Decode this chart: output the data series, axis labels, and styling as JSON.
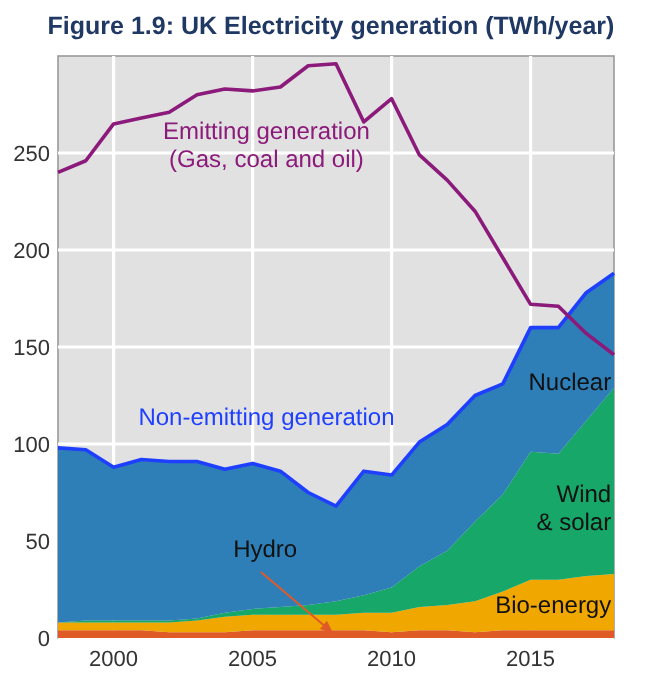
{
  "chart_data": {
    "type": "area",
    "title": "Figure 1.9: UK Electricity generation (TWh/year)",
    "stacked": true,
    "x": [
      1998,
      1999,
      2000,
      2001,
      2002,
      2003,
      2004,
      2005,
      2006,
      2007,
      2008,
      2009,
      2010,
      2011,
      2012,
      2013,
      2014,
      2015,
      2016,
      2017,
      2018
    ],
    "series": [
      {
        "name": "Hydro",
        "color": "#e05a28",
        "values": [
          4,
          4,
          4,
          4,
          3,
          3,
          3,
          4,
          4,
          4,
          4,
          4,
          3,
          4,
          4,
          3,
          4,
          4,
          4,
          4,
          4
        ]
      },
      {
        "name": "Bio-energy",
        "color": "#f0a800",
        "values": [
          4,
          4,
          4,
          4,
          5,
          6,
          8,
          8,
          8,
          8,
          8,
          9,
          10,
          12,
          13,
          16,
          20,
          26,
          26,
          28,
          29
        ]
      },
      {
        "name": "Wind & solar",
        "color": "#17a768",
        "values": [
          0,
          1,
          1,
          1,
          1,
          1,
          2,
          3,
          4,
          5,
          7,
          9,
          13,
          21,
          28,
          41,
          50,
          66,
          65,
          80,
          96
        ]
      },
      {
        "name": "Nuclear",
        "color": "#2e7fb8",
        "values": [
          90,
          88,
          79,
          83,
          82,
          81,
          74,
          75,
          70,
          58,
          49,
          64,
          58,
          64,
          65,
          65,
          57,
          64,
          65,
          66,
          59
        ]
      },
      {
        "name": "Emitting generation (Gas, coal and oil)",
        "type": "line",
        "color": "#8b1a7a",
        "values": [
          240,
          246,
          265,
          268,
          271,
          280,
          283,
          282,
          284,
          295,
          296,
          266,
          278,
          249,
          236,
          220,
          196,
          172,
          171,
          157,
          146
        ]
      }
    ],
    "annotations": [
      "Non-emitting generation"
    ],
    "xlim": [
      1998,
      2018
    ],
    "xticks": [
      2000,
      2005,
      2010,
      2015
    ],
    "ylim": [
      0,
      300
    ],
    "yticks": [
      0,
      50,
      100,
      150,
      200,
      250
    ],
    "grid": true
  }
}
